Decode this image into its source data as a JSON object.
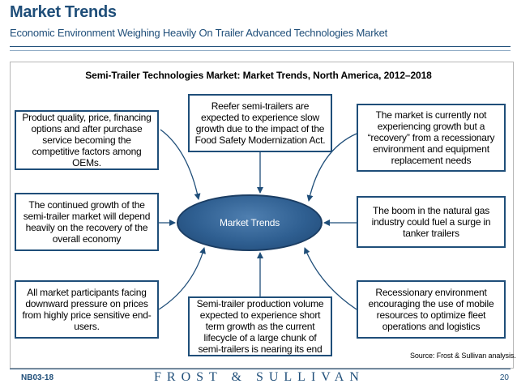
{
  "header": {
    "title": "Market Trends",
    "subtitle": "Economic Environment Weighing Heavily On Trailer Advanced Technologies Market"
  },
  "diagram": {
    "title": "Semi-Trailer Technologies Market: Market Trends, North America, 2012–2018",
    "center_label": "Market Trends",
    "boxes": {
      "top_left": "Product quality, price, financing options and after purchase service becoming the competitive factors among OEMs.",
      "top_center": "Reefer semi-trailers are expected to experience slow growth due to the impact of the Food Safety Modernization Act.",
      "top_right": "The market is currently not experiencing growth but a “recovery” from a recessionary environment and equipment replacement needs",
      "mid_left": "The continued growth of the semi-trailer market will depend heavily on the recovery of the overall economy",
      "mid_right": "The boom in the natural gas industry could fuel a surge in tanker trailers",
      "bottom_left": "All market participants facing downward pressure on prices from highly price sensitive end-users.",
      "bottom_center": "Semi-trailer production volume expected to experience short term growth as the current lifecycle of a large chunk of semi-trailers is nearing its end",
      "bottom_right": "Recessionary environment encouraging the use of mobile resources to optimize fleet operations and logistics"
    },
    "source": "Source: Frost & Sullivan analysis."
  },
  "footer": {
    "code": "NB03-18",
    "brand": "FROST & SULLIVAN",
    "page": "20"
  },
  "colors": {
    "accent": "#1f4e79",
    "ellipse": "#2f5f91"
  }
}
